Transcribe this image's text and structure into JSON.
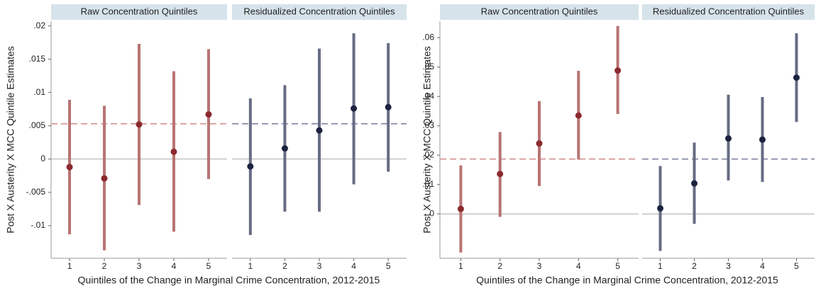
{
  "chart_data": [
    {
      "type": "errorbar",
      "y_label": "Post X Austerity X MCC Quintile Estimates",
      "x_label": "Quintiles of the Change in Marginal Crime Concentration, 2012-2015",
      "ylim": [
        -0.0149,
        0.0207
      ],
      "yticks": [
        {
          "value": -0.01,
          "label": "-.01"
        },
        {
          "value": -0.005,
          "label": "-.005"
        },
        0,
        {
          "value": 0.005,
          "label": ".005"
        },
        {
          "value": 0.01,
          "label": ".01"
        },
        {
          "value": 0.015,
          "label": ".015"
        },
        {
          "value": 0.02,
          "label": ".02"
        }
      ],
      "panels": [
        {
          "title": "Raw Concentration Quintiles",
          "categories": [
            "1",
            "2",
            "3",
            "4",
            "5"
          ],
          "values": [
            -0.0012,
            -0.0029,
            0.0052,
            0.0011,
            0.0067
          ],
          "upper": [
            0.0089,
            0.008,
            0.0173,
            0.0132,
            0.0165
          ],
          "lower": [
            -0.0113,
            -0.0137,
            -0.0069,
            -0.0109,
            -0.003
          ],
          "reference": 0.0053,
          "color": "#b87373",
          "marker_color": "#8a2a2e",
          "reference_color": "#dba3a3"
        },
        {
          "title": "Residualized Concentration Quintiles",
          "categories": [
            "1",
            "2",
            "3",
            "4",
            "5"
          ],
          "values": [
            -0.0011,
            0.0016,
            0.0043,
            0.0076,
            0.0078
          ],
          "upper": [
            0.0091,
            0.0111,
            0.0166,
            0.0189,
            0.0174
          ],
          "lower": [
            -0.0114,
            -0.0079,
            -0.0079,
            -0.0038,
            -0.0019
          ],
          "reference": 0.0053,
          "color": "#676c84",
          "marker_color": "#1b2340",
          "reference_color": "#9398b0"
        }
      ]
    },
    {
      "type": "errorbar",
      "y_label": "Post X Austerity X MCC Quintile Estimates",
      "x_label": "Quintiles of the Change in Marginal Crime Concentration, 2012-2015",
      "ylim": [
        -0.0151,
        0.0656
      ],
      "yticks": [
        0,
        {
          "value": 0.01,
          "label": ".01"
        },
        {
          "value": 0.02,
          "label": ".02"
        },
        {
          "value": 0.03,
          "label": ".03"
        },
        {
          "value": 0.04,
          "label": ".04"
        },
        {
          "value": 0.05,
          "label": ".05"
        },
        {
          "value": 0.06,
          "label": ".06"
        }
      ],
      "panels": [
        {
          "title": "Raw Concentration Quintiles",
          "categories": [
            "1",
            "2",
            "3",
            "4",
            "5"
          ],
          "values": [
            0.0017,
            0.0136,
            0.024,
            0.0335,
            0.0488
          ],
          "upper": [
            0.0165,
            0.0279,
            0.0384,
            0.0487,
            0.064
          ],
          "lower": [
            -0.0131,
            -0.001,
            0.0095,
            0.0185,
            0.034
          ],
          "reference": 0.0187,
          "color": "#b87373",
          "marker_color": "#8a2a2e",
          "reference_color": "#dba3a3"
        },
        {
          "title": "Residualized Concentration Quintiles",
          "categories": [
            "1",
            "2",
            "3",
            "4",
            "5"
          ],
          "values": [
            0.0019,
            0.0104,
            0.0257,
            0.0253,
            0.0464
          ],
          "upper": [
            0.0163,
            0.0243,
            0.0406,
            0.0398,
            0.0615
          ],
          "lower": [
            -0.0126,
            -0.0034,
            0.0114,
            0.0109,
            0.0313
          ],
          "reference": 0.0187,
          "color": "#676c84",
          "marker_color": "#1b2340",
          "reference_color": "#9398b0"
        }
      ]
    }
  ]
}
